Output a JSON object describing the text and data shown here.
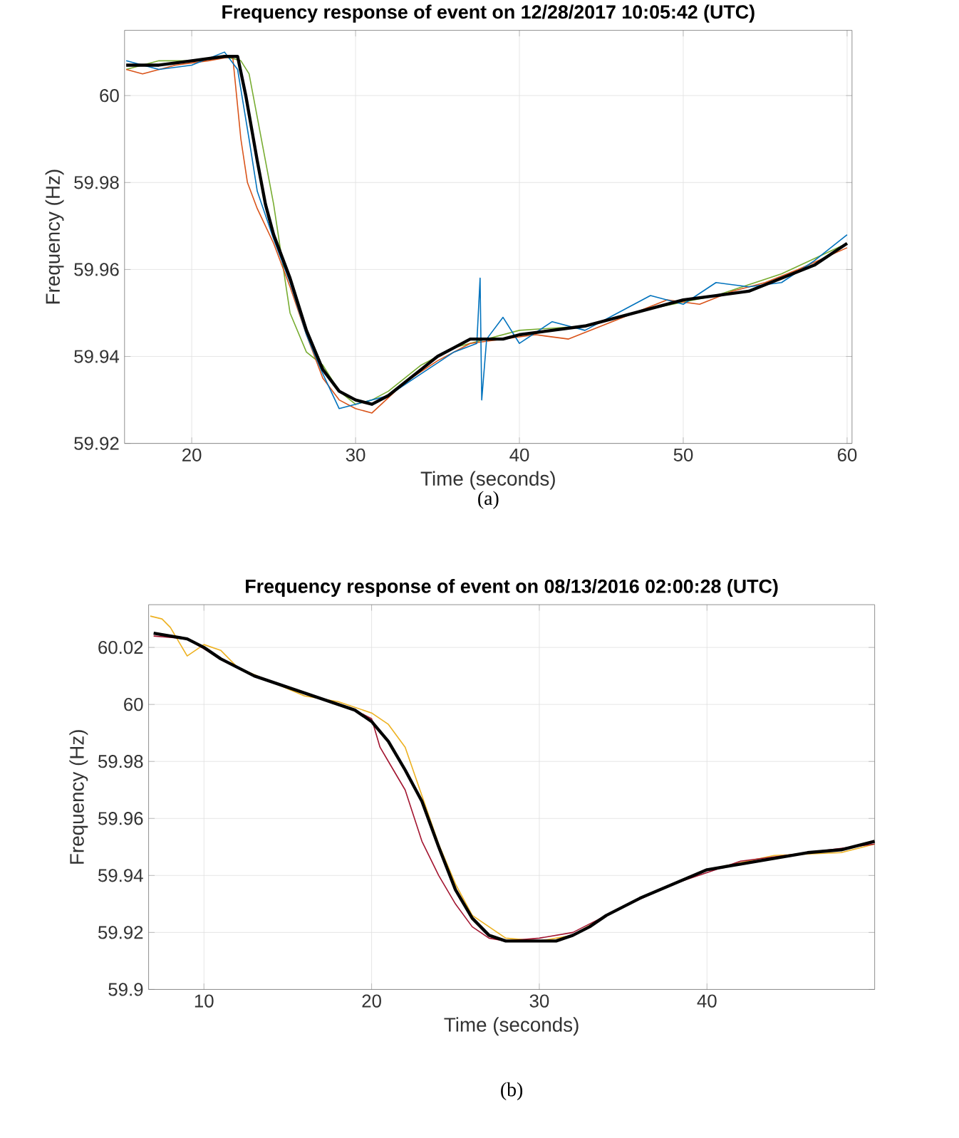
{
  "chart_data": [
    {
      "type": "line",
      "title": "Frequency response of event on 12/28/2017 10:05:42 (UTC)",
      "xlabel": "Time (seconds)",
      "ylabel": "Frequency (Hz)",
      "annotations": [
        "(a)"
      ],
      "xlim": [
        15.9,
        60.3
      ],
      "ylim": [
        59.92,
        60.015
      ],
      "xticks": [
        20,
        30,
        40,
        50,
        60
      ],
      "yticks": [
        59.92,
        59.94,
        59.96,
        59.98,
        60
      ],
      "grid": true,
      "series": [
        {
          "color": "#77ac30",
          "x": [
            16,
            18,
            20,
            22,
            23,
            23.5,
            24,
            25,
            26,
            27,
            28,
            29,
            30,
            31,
            32,
            34,
            36,
            38,
            40,
            44,
            48,
            52,
            56,
            60
          ],
          "values": [
            60.006,
            60.008,
            60.008,
            60.009,
            60.008,
            60.005,
            59.995,
            59.975,
            59.95,
            59.941,
            59.938,
            59.932,
            59.929,
            59.93,
            59.932,
            59.938,
            59.942,
            59.944,
            59.946,
            59.947,
            59.951,
            59.954,
            59.959,
            59.966
          ]
        },
        {
          "color": "#d95319",
          "x": [
            16,
            17,
            19,
            21,
            22.5,
            23,
            23.4,
            24,
            25,
            26,
            27,
            28,
            29,
            30,
            31,
            33,
            35,
            37,
            39,
            41,
            43,
            45,
            47,
            49,
            51,
            53,
            55,
            57,
            60
          ],
          "values": [
            60.006,
            60.005,
            60.007,
            60.008,
            60.009,
            59.99,
            59.98,
            59.974,
            59.966,
            59.956,
            59.945,
            59.935,
            59.93,
            59.928,
            59.927,
            59.934,
            59.939,
            59.943,
            59.944,
            59.945,
            59.944,
            59.947,
            59.95,
            59.953,
            59.952,
            59.955,
            59.957,
            59.96,
            59.965
          ]
        },
        {
          "color": "#0072bd",
          "x": [
            16,
            18,
            20,
            22,
            22.8,
            23.5,
            24,
            25,
            26,
            27,
            28,
            29,
            30,
            32,
            34,
            36,
            37.4,
            37.6,
            37.7,
            38,
            39,
            40,
            42,
            44,
            46,
            48,
            50,
            52,
            54,
            56,
            58,
            60
          ],
          "values": [
            60.008,
            60.006,
            60.007,
            60.01,
            60.006,
            59.99,
            59.978,
            59.967,
            59.957,
            59.945,
            59.936,
            59.928,
            59.929,
            59.931,
            59.936,
            59.941,
            59.943,
            59.958,
            59.93,
            59.944,
            59.949,
            59.943,
            59.948,
            59.946,
            59.95,
            59.954,
            59.952,
            59.957,
            59.956,
            59.957,
            59.962,
            59.968
          ]
        },
        {
          "color": "#000000",
          "x": [
            16,
            18,
            20,
            22,
            22.8,
            23.3,
            24,
            24.5,
            25,
            26,
            27,
            28,
            29,
            30,
            31,
            32,
            33,
            34,
            35,
            36,
            37,
            38,
            39,
            40,
            42,
            44,
            46,
            48,
            50,
            52,
            54,
            56,
            58,
            60
          ],
          "values": [
            60.007,
            60.007,
            60.008,
            60.009,
            60.009,
            60.0,
            59.985,
            59.975,
            59.968,
            59.958,
            59.946,
            59.937,
            59.932,
            59.93,
            59.929,
            59.931,
            59.934,
            59.937,
            59.94,
            59.942,
            59.944,
            59.944,
            59.944,
            59.945,
            59.946,
            59.947,
            59.949,
            59.951,
            59.953,
            59.954,
            59.955,
            59.958,
            59.961,
            59.966
          ]
        }
      ]
    },
    {
      "type": "line",
      "title": "Frequency response of event on 08/13/2016 02:00:28 (UTC)",
      "xlabel": "Time (seconds)",
      "ylabel": "Frequency (Hz)",
      "annotations": [
        "(b)"
      ],
      "xlim": [
        6.7,
        50
      ],
      "ylim": [
        59.9,
        60.035
      ],
      "xticks": [
        10,
        20,
        30,
        40
      ],
      "yticks": [
        59.9,
        59.92,
        59.94,
        59.96,
        59.98,
        60,
        60.02
      ],
      "grid": true,
      "series": [
        {
          "color": "#edb120",
          "x": [
            6.8,
            7.5,
            8,
            9,
            10,
            11,
            12,
            14,
            16,
            18,
            20,
            21,
            22,
            23,
            24,
            25,
            26,
            28,
            30,
            32,
            34,
            36,
            40,
            44,
            48,
            50
          ],
          "values": [
            60.031,
            60.03,
            60.027,
            60.017,
            60.021,
            60.019,
            60.013,
            60.008,
            60.003,
            60.001,
            59.997,
            59.993,
            59.985,
            59.968,
            59.951,
            59.937,
            59.926,
            59.918,
            59.917,
            59.919,
            59.926,
            59.932,
            59.942,
            59.947,
            59.948,
            59.951
          ]
        },
        {
          "color": "#a2142f",
          "x": [
            7,
            9,
            11,
            13,
            15,
            17,
            19,
            20,
            20.5,
            21,
            22,
            23,
            24,
            25,
            26,
            27,
            28,
            30,
            32,
            35,
            38,
            42,
            46,
            50
          ],
          "values": [
            60.024,
            60.023,
            60.016,
            60.01,
            60.006,
            60.002,
            59.998,
            59.995,
            59.985,
            59.98,
            59.97,
            59.952,
            59.94,
            59.93,
            59.922,
            59.918,
            59.917,
            59.918,
            59.92,
            59.929,
            59.937,
            59.945,
            59.948,
            59.951
          ]
        },
        {
          "color": "#000000",
          "x": [
            7,
            8,
            9,
            10,
            11,
            12,
            13,
            14,
            15,
            16,
            17,
            18,
            19,
            20,
            21,
            22,
            23,
            24,
            25,
            26,
            27,
            28,
            29,
            30,
            31,
            32,
            33,
            34,
            35,
            36,
            38,
            40,
            42,
            44,
            46,
            48,
            50
          ],
          "values": [
            60.025,
            60.024,
            60.023,
            60.02,
            60.016,
            60.013,
            60.01,
            60.008,
            60.006,
            60.004,
            60.002,
            60.0,
            59.998,
            59.994,
            59.987,
            59.977,
            59.966,
            59.95,
            59.935,
            59.925,
            59.919,
            59.917,
            59.917,
            59.917,
            59.917,
            59.919,
            59.922,
            59.926,
            59.929,
            59.932,
            59.937,
            59.942,
            59.944,
            59.946,
            59.948,
            59.949,
            59.952
          ]
        }
      ]
    }
  ]
}
